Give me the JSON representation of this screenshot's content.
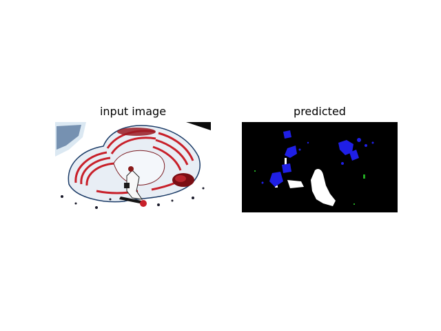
{
  "figure": {
    "left_title": "input image",
    "right_title": "predicted"
  },
  "input_image": {
    "subject": "skateboarder riding an empty swimming-pool style skate bowl with red stripes",
    "palette": {
      "background": "#ffffff",
      "bowl_stripe": "#c8202a",
      "shadow": "#101010",
      "accent_blue": "#3a6fb0"
    }
  },
  "segmentation": {
    "background": "#000000",
    "classes": [
      {
        "color": "#ffffff",
        "meaning": "person"
      },
      {
        "color": "#1f1fe6",
        "meaning": "blue class regions"
      },
      {
        "color": "#22aa22",
        "meaning": "green class specks"
      }
    ]
  }
}
